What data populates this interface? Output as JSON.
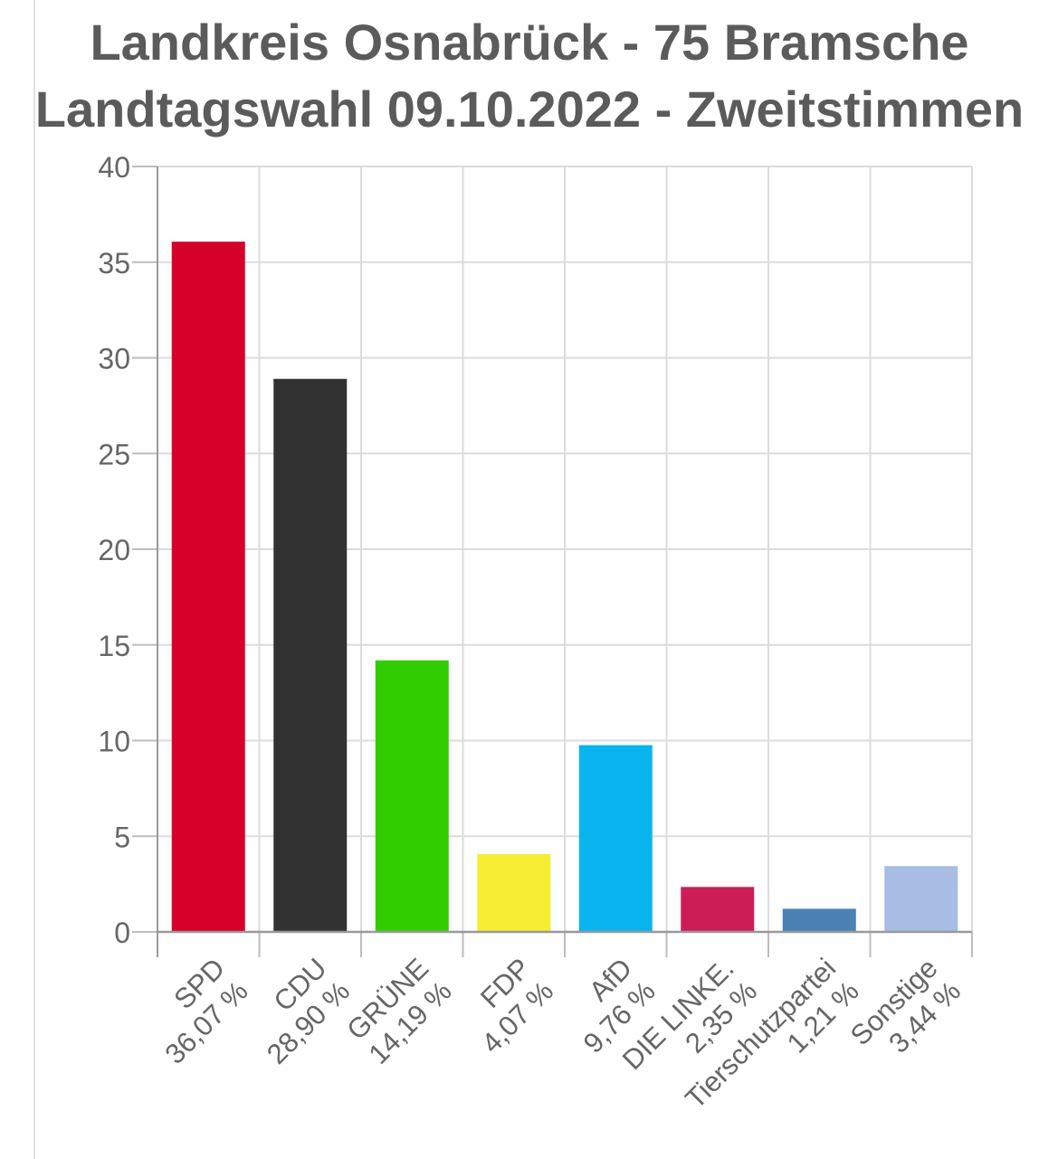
{
  "chart_data": {
    "type": "bar",
    "title": "Landkreis Osnabrück - 75 Bramsche",
    "subtitle": "Landtagswahl 09.10.2022  - Zweitstimmen",
    "xlabel": "",
    "ylabel": "",
    "ylim": [
      0,
      40
    ],
    "yticks": [
      0,
      5,
      10,
      15,
      20,
      25,
      30,
      35,
      40
    ],
    "grid": true,
    "categories": [
      "SPD",
      "CDU",
      "GRÜNE",
      "FDP",
      "AfD",
      "DIE LINKE.",
      "Tierschutzpartei",
      "Sonstige"
    ],
    "value_labels": [
      "36,07 %",
      "28,90 %",
      "14,19 %",
      "4,07 %",
      "9,76 %",
      "2,35 %",
      "1,21 %",
      "3,44 %"
    ],
    "values": [
      36.07,
      28.9,
      14.19,
      4.07,
      9.76,
      2.35,
      1.21,
      3.44
    ],
    "colors": [
      "#d6002a",
      "#323232",
      "#32cd00",
      "#f5ee32",
      "#0ab4ee",
      "#cc1d57",
      "#4a82b4",
      "#a8bde3"
    ]
  }
}
